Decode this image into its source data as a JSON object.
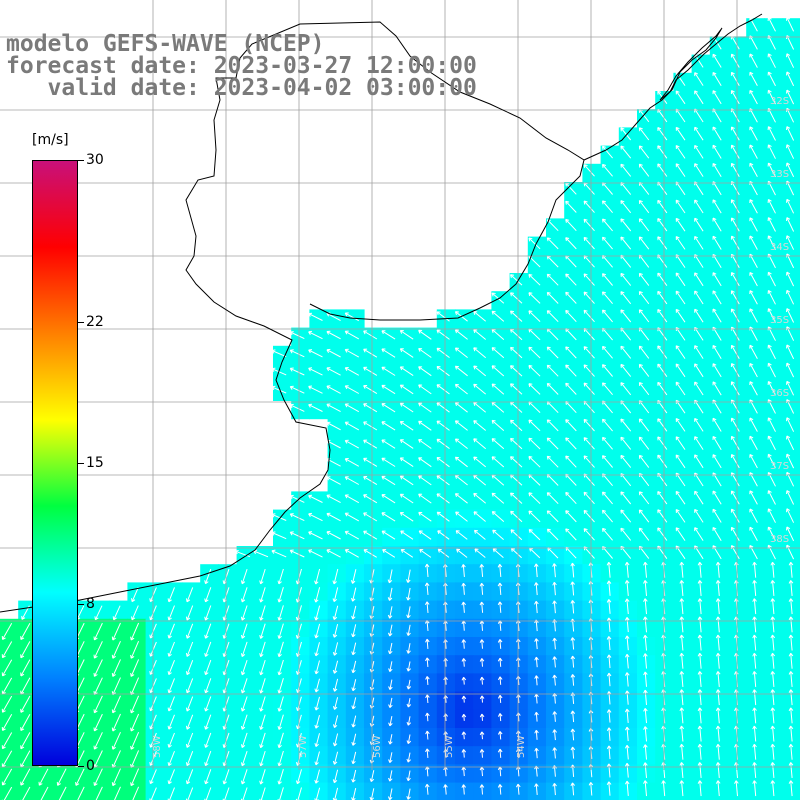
{
  "title": {
    "model": "modelo GEFS-WAVE (NCEP)",
    "forecast": "forecast date: 2023-03-27 12:00:00",
    "valid": "   valid date: 2023-04-02 03:00:00"
  },
  "colorbar": {
    "unit": "[m/s]",
    "min": 0,
    "max": 30,
    "ticks": [
      {
        "value": 30,
        "label": "30"
      },
      {
        "value": 22,
        "label": "22"
      },
      {
        "value": 15,
        "label": "15"
      },
      {
        "value": 8,
        "label": "8"
      },
      {
        "value": 0,
        "label": "0"
      }
    ],
    "colors": [
      "#0000dc",
      "#0080ff",
      "#00ffff",
      "#00ff40",
      "#ffff00",
      "#ff8000",
      "#ff0000",
      "#c8107a"
    ]
  },
  "map": {
    "variable": "wind speed",
    "lon_labels": [
      "58W",
      "57W",
      "56W",
      "55W",
      "54W"
    ],
    "lat_labels": [
      "32S",
      "33S",
      "34S",
      "35S",
      "36S",
      "37S",
      "38S"
    ],
    "land_color": "#ffffff",
    "coast_color": "#000000",
    "grid_color": "#a0a0a0"
  }
}
